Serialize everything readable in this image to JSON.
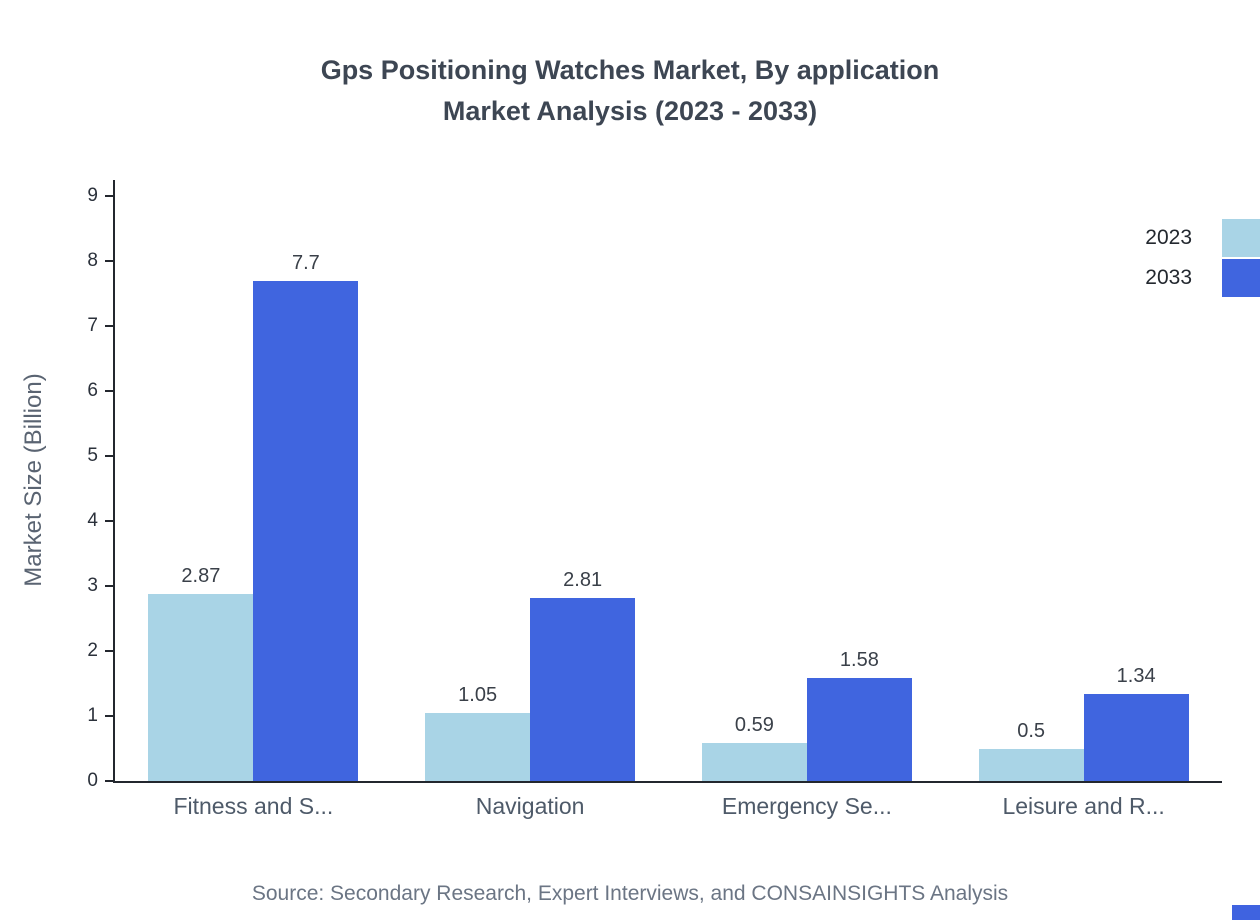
{
  "title": {
    "line1": "Gps Positioning Watches Market, By application",
    "line2": "Market Analysis (2023 - 2033)"
  },
  "source": "Source: Secondary Research, Expert Interviews, and CONSAINSIGHTS Analysis",
  "chart_data": {
    "type": "bar",
    "categories": [
      "Fitness and S...",
      "Navigation",
      "Emergency Se...",
      "Leisure and R..."
    ],
    "series": [
      {
        "name": "2023",
        "color": "#A9D4E6",
        "values": [
          2.87,
          1.05,
          0.59,
          0.5
        ]
      },
      {
        "name": "2033",
        "color": "#4065DF",
        "values": [
          7.7,
          2.81,
          1.58,
          1.34
        ]
      }
    ],
    "ylabel": "Market Size (Billion)",
    "ylim": [
      0,
      9
    ],
    "yticks": [
      0,
      1,
      2,
      3,
      4,
      5,
      6,
      7,
      8,
      9
    ],
    "grid": false,
    "legend_position": "top-right"
  }
}
